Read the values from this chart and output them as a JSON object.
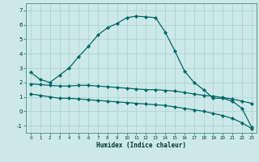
{
  "xlabel": "Humidex (Indice chaleur)",
  "xlim": [
    -0.5,
    23.5
  ],
  "ylim": [
    -1.5,
    7.5
  ],
  "yticks": [
    -1,
    0,
    1,
    2,
    3,
    4,
    5,
    6,
    7
  ],
  "xticks": [
    0,
    1,
    2,
    3,
    4,
    5,
    6,
    7,
    8,
    9,
    10,
    11,
    12,
    13,
    14,
    15,
    16,
    17,
    18,
    19,
    20,
    21,
    22,
    23
  ],
  "background_color": "#cde8e8",
  "grid_color": "#aad0d0",
  "line_color": "#006868",
  "line1_x": [
    0,
    1,
    2,
    3,
    4,
    5,
    6,
    7,
    8,
    9,
    10,
    11,
    12,
    13,
    14,
    15,
    16,
    17,
    18,
    19,
    20,
    21,
    22,
    23
  ],
  "line1_y": [
    2.7,
    2.2,
    2.0,
    2.5,
    3.0,
    3.8,
    4.5,
    5.3,
    5.8,
    6.1,
    6.5,
    6.6,
    6.55,
    6.5,
    5.5,
    4.2,
    2.8,
    2.0,
    1.5,
    0.9,
    0.9,
    0.7,
    0.2,
    -1.1
  ],
  "line2_x": [
    0,
    1,
    2,
    3,
    4,
    5,
    6,
    7,
    8,
    9,
    10,
    11,
    12,
    13,
    14,
    15,
    16,
    17,
    18,
    19,
    20,
    21,
    22,
    23
  ],
  "line2_y": [
    1.9,
    1.85,
    1.8,
    1.75,
    1.75,
    1.8,
    1.8,
    1.75,
    1.7,
    1.65,
    1.6,
    1.55,
    1.5,
    1.5,
    1.45,
    1.4,
    1.3,
    1.2,
    1.1,
    1.05,
    0.95,
    0.85,
    0.7,
    0.55
  ],
  "line3_x": [
    0,
    1,
    2,
    3,
    4,
    5,
    6,
    7,
    8,
    9,
    10,
    11,
    12,
    13,
    14,
    15,
    16,
    17,
    18,
    19,
    20,
    21,
    22,
    23
  ],
  "line3_y": [
    1.2,
    1.1,
    1.0,
    0.9,
    0.9,
    0.85,
    0.8,
    0.75,
    0.7,
    0.65,
    0.6,
    0.55,
    0.5,
    0.45,
    0.4,
    0.3,
    0.2,
    0.1,
    0.0,
    -0.15,
    -0.3,
    -0.5,
    -0.8,
    -1.2
  ]
}
